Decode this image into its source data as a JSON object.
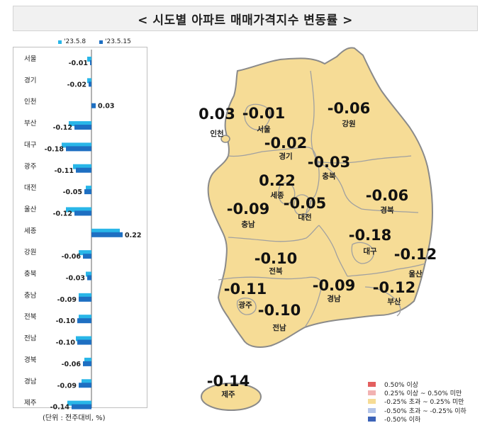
{
  "title": "< 시도별 아파트 매매가격지수 변동률 >",
  "unit_label": "(단위 : 전주대비, %)",
  "colors": {
    "prev_week": "#29b6e8",
    "curr_week": "#1e6fc2",
    "map_fill": "#f6dc96",
    "map_border": "#8a8a8a"
  },
  "chart_data": [
    {
      "type": "bar",
      "orientation": "horizontal",
      "categories": [
        "서울",
        "경기",
        "인천",
        "부산",
        "대구",
        "광주",
        "대전",
        "울산",
        "세종",
        "강원",
        "충북",
        "충남",
        "전북",
        "전남",
        "경북",
        "경남",
        "제주"
      ],
      "series": [
        {
          "name": "'23.5.8",
          "values": [
            -0.03,
            -0.03,
            0.0,
            -0.16,
            -0.21,
            -0.13,
            -0.04,
            -0.18,
            0.2,
            -0.09,
            -0.04,
            -0.09,
            -0.09,
            -0.11,
            -0.05,
            -0.07,
            -0.17
          ]
        },
        {
          "name": "'23.5.15",
          "values": [
            -0.01,
            -0.02,
            0.03,
            -0.12,
            -0.18,
            -0.11,
            -0.05,
            -0.12,
            0.22,
            -0.06,
            -0.03,
            -0.09,
            -0.1,
            -0.1,
            -0.06,
            -0.09,
            -0.14
          ]
        }
      ],
      "data_labels": [
        "-0.01",
        "-0.02",
        "0.03",
        "-0.12",
        "-0.18",
        "-0.11",
        "-0.05",
        "-0.12",
        "0.22",
        "-0.06",
        "-0.03",
        "-0.09",
        "-0.10",
        "-0.10",
        "-0.06",
        "-0.09",
        "-0.14"
      ],
      "xlim": [
        -0.22,
        0.26
      ]
    },
    {
      "type": "map",
      "regions": [
        {
          "name": "서울",
          "value": "-0.01"
        },
        {
          "name": "인천",
          "value": "0.03"
        },
        {
          "name": "경기",
          "value": "-0.02"
        },
        {
          "name": "강원",
          "value": "-0.06"
        },
        {
          "name": "충북",
          "value": "-0.03"
        },
        {
          "name": "세종",
          "value": "0.22"
        },
        {
          "name": "대전",
          "value": "-0.05"
        },
        {
          "name": "충남",
          "value": "-0.09"
        },
        {
          "name": "경북",
          "value": "-0.06"
        },
        {
          "name": "대구",
          "value": "-0.18"
        },
        {
          "name": "울산",
          "value": "-0.12"
        },
        {
          "name": "전북",
          "value": "-0.10"
        },
        {
          "name": "광주",
          "value": "-0.11"
        },
        {
          "name": "전남",
          "value": "-0.10"
        },
        {
          "name": "경남",
          "value": "-0.09"
        },
        {
          "name": "부산",
          "value": "-0.12"
        },
        {
          "name": "제주",
          "value": "-0.14"
        }
      ],
      "legend": [
        {
          "label": "0.50% 이상",
          "color": "#e35f5f"
        },
        {
          "label": "0.25% 이상 ~ 0.50% 미만",
          "color": "#f2b2b2"
        },
        {
          "label": "-0.25% 초과 ~ 0.25% 미만",
          "color": "#f6dc96"
        },
        {
          "label": "-0.50% 초과 ~ -0.25% 이하",
          "color": "#b3c5ea"
        },
        {
          "label": "-0.50% 이하",
          "color": "#3c63b8"
        }
      ]
    }
  ]
}
